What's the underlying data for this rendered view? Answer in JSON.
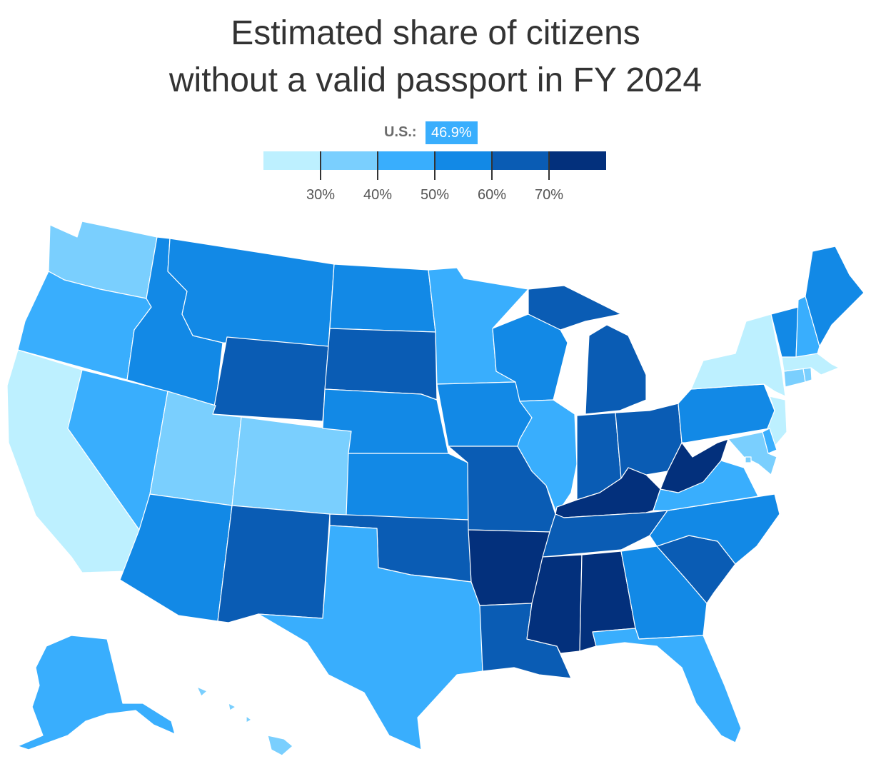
{
  "title": {
    "line1": "Estimated share of citizens",
    "line2": "without a valid passport in FY 2024"
  },
  "us_average": {
    "label": "U.S.:",
    "value": "46.9%"
  },
  "legend": {
    "colors": [
      "#bdf0ff",
      "#7acffe",
      "#39aefd",
      "#1289e6",
      "#0a5cb4",
      "#03307c"
    ],
    "ticks": [
      "30%",
      "40%",
      "50%",
      "60%",
      "70%"
    ]
  },
  "colors": {
    "c1": "#bdf0ff",
    "c2": "#7acffe",
    "c3": "#39aefd",
    "c4": "#1289e6",
    "c5": "#0a5cb4",
    "c6": "#03307c"
  },
  "states": [
    {
      "id": "WA",
      "bin": 2
    },
    {
      "id": "OR",
      "bin": 3
    },
    {
      "id": "CA",
      "bin": 1
    },
    {
      "id": "ID",
      "bin": 4
    },
    {
      "id": "NV",
      "bin": 3
    },
    {
      "id": "MT",
      "bin": 4
    },
    {
      "id": "WY",
      "bin": 5
    },
    {
      "id": "UT",
      "bin": 2
    },
    {
      "id": "CO",
      "bin": 2
    },
    {
      "id": "AZ",
      "bin": 4
    },
    {
      "id": "NM",
      "bin": 5
    },
    {
      "id": "ND",
      "bin": 4
    },
    {
      "id": "SD",
      "bin": 5
    },
    {
      "id": "NE",
      "bin": 4
    },
    {
      "id": "KS",
      "bin": 4
    },
    {
      "id": "OK",
      "bin": 5
    },
    {
      "id": "TX",
      "bin": 3
    },
    {
      "id": "MN",
      "bin": 3
    },
    {
      "id": "IA",
      "bin": 4
    },
    {
      "id": "MO",
      "bin": 5
    },
    {
      "id": "AR",
      "bin": 6
    },
    {
      "id": "LA",
      "bin": 5
    },
    {
      "id": "WI",
      "bin": 4
    },
    {
      "id": "IL",
      "bin": 3
    },
    {
      "id": "MI",
      "bin": 5
    },
    {
      "id": "IN",
      "bin": 5
    },
    {
      "id": "OH",
      "bin": 5
    },
    {
      "id": "KY",
      "bin": 6
    },
    {
      "id": "TN",
      "bin": 5
    },
    {
      "id": "MS",
      "bin": 6
    },
    {
      "id": "AL",
      "bin": 6
    },
    {
      "id": "GA",
      "bin": 4
    },
    {
      "id": "FL",
      "bin": 3
    },
    {
      "id": "SC",
      "bin": 5
    },
    {
      "id": "NC",
      "bin": 4
    },
    {
      "id": "VA",
      "bin": 3
    },
    {
      "id": "WV",
      "bin": 6
    },
    {
      "id": "PA",
      "bin": 4
    },
    {
      "id": "NY",
      "bin": 1
    },
    {
      "id": "VT",
      "bin": 4
    },
    {
      "id": "NH",
      "bin": 3
    },
    {
      "id": "ME",
      "bin": 4
    },
    {
      "id": "MA",
      "bin": 1
    },
    {
      "id": "CT",
      "bin": 2
    },
    {
      "id": "RI",
      "bin": 2
    },
    {
      "id": "NJ",
      "bin": 1
    },
    {
      "id": "DE",
      "bin": 3
    },
    {
      "id": "MD",
      "bin": 2
    },
    {
      "id": "DC",
      "bin": 2
    },
    {
      "id": "AK",
      "bin": 3
    },
    {
      "id": "HI",
      "bin": 2
    }
  ]
}
